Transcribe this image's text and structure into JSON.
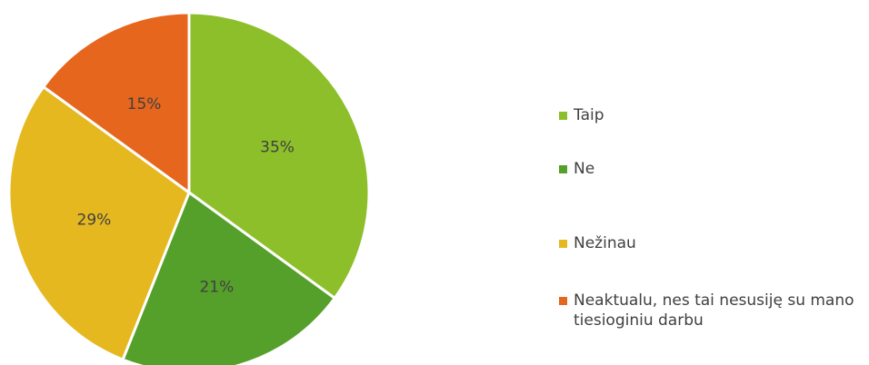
{
  "chart_data": {
    "type": "pie",
    "categories": [
      "Taip",
      "Ne",
      "Nežinau",
      "Neaktualu, nes tai nesusiję su mano tiesioginiu darbu"
    ],
    "values": [
      35,
      21,
      29,
      15
    ],
    "value_labels": [
      "35%",
      "21%",
      "29%",
      "15%"
    ],
    "colors": [
      "#8dbf2a",
      "#55a02a",
      "#e5b820",
      "#e6661e"
    ],
    "legend": "right"
  }
}
